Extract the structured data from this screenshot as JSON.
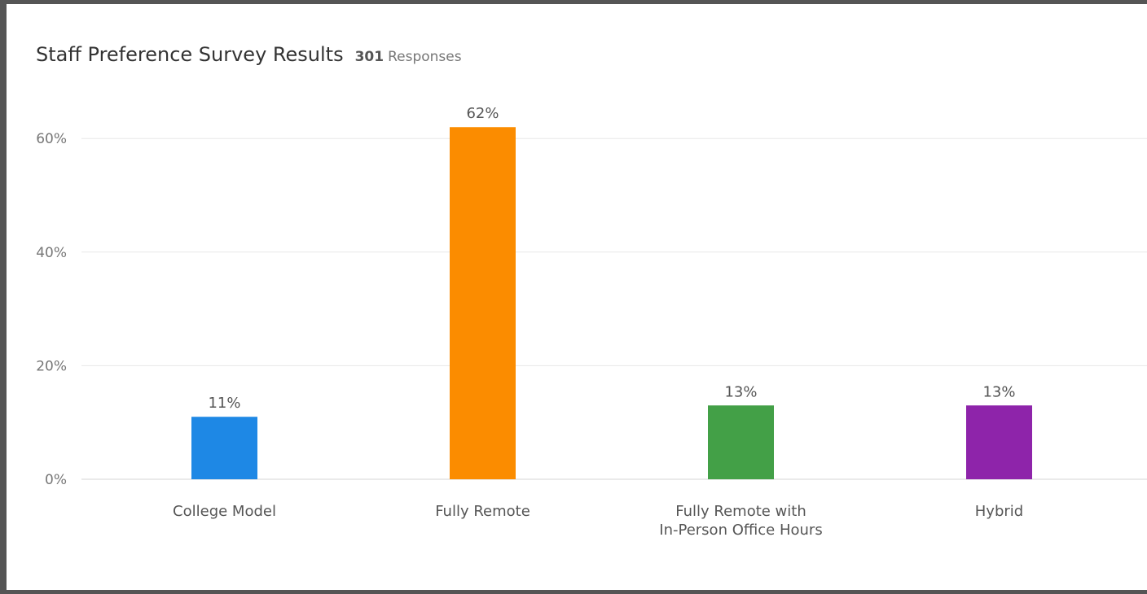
{
  "header": {
    "title": "Staff Preference Survey Results",
    "response_count": "301",
    "response_label": "Responses"
  },
  "chart_data": {
    "type": "bar",
    "title": "Staff Preference Survey Results",
    "xlabel": "",
    "ylabel": "",
    "ylim": [
      0,
      70
    ],
    "grid": true,
    "y_ticks": [
      0,
      20,
      40,
      60
    ],
    "y_tick_labels": [
      "0%",
      "20%",
      "40%",
      "60%"
    ],
    "categories": [
      [
        "College Model"
      ],
      [
        "Fully Remote"
      ],
      [
        "Fully Remote with",
        "In-Person Office Hours"
      ],
      [
        "Hybrid"
      ]
    ],
    "values": [
      11,
      62,
      13,
      13
    ],
    "data_labels": [
      "11%",
      "62%",
      "13%",
      "13%"
    ],
    "colors": [
      "#1e88e5",
      "#fb8c00",
      "#43a047",
      "#8e24aa"
    ]
  }
}
